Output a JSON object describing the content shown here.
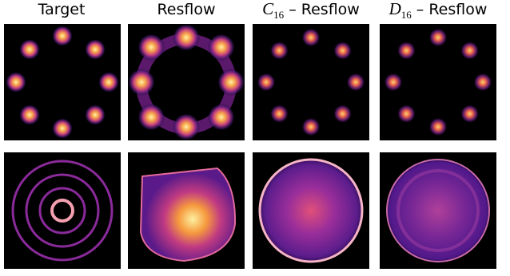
{
  "columns": [
    {
      "title": "Target"
    },
    {
      "title": "Resflow"
    },
    {
      "symbol": "C",
      "subscript": "16",
      "suffix": " – Resflow"
    },
    {
      "symbol": "D",
      "subscript": "16",
      "suffix": " – Resflow"
    }
  ]
}
